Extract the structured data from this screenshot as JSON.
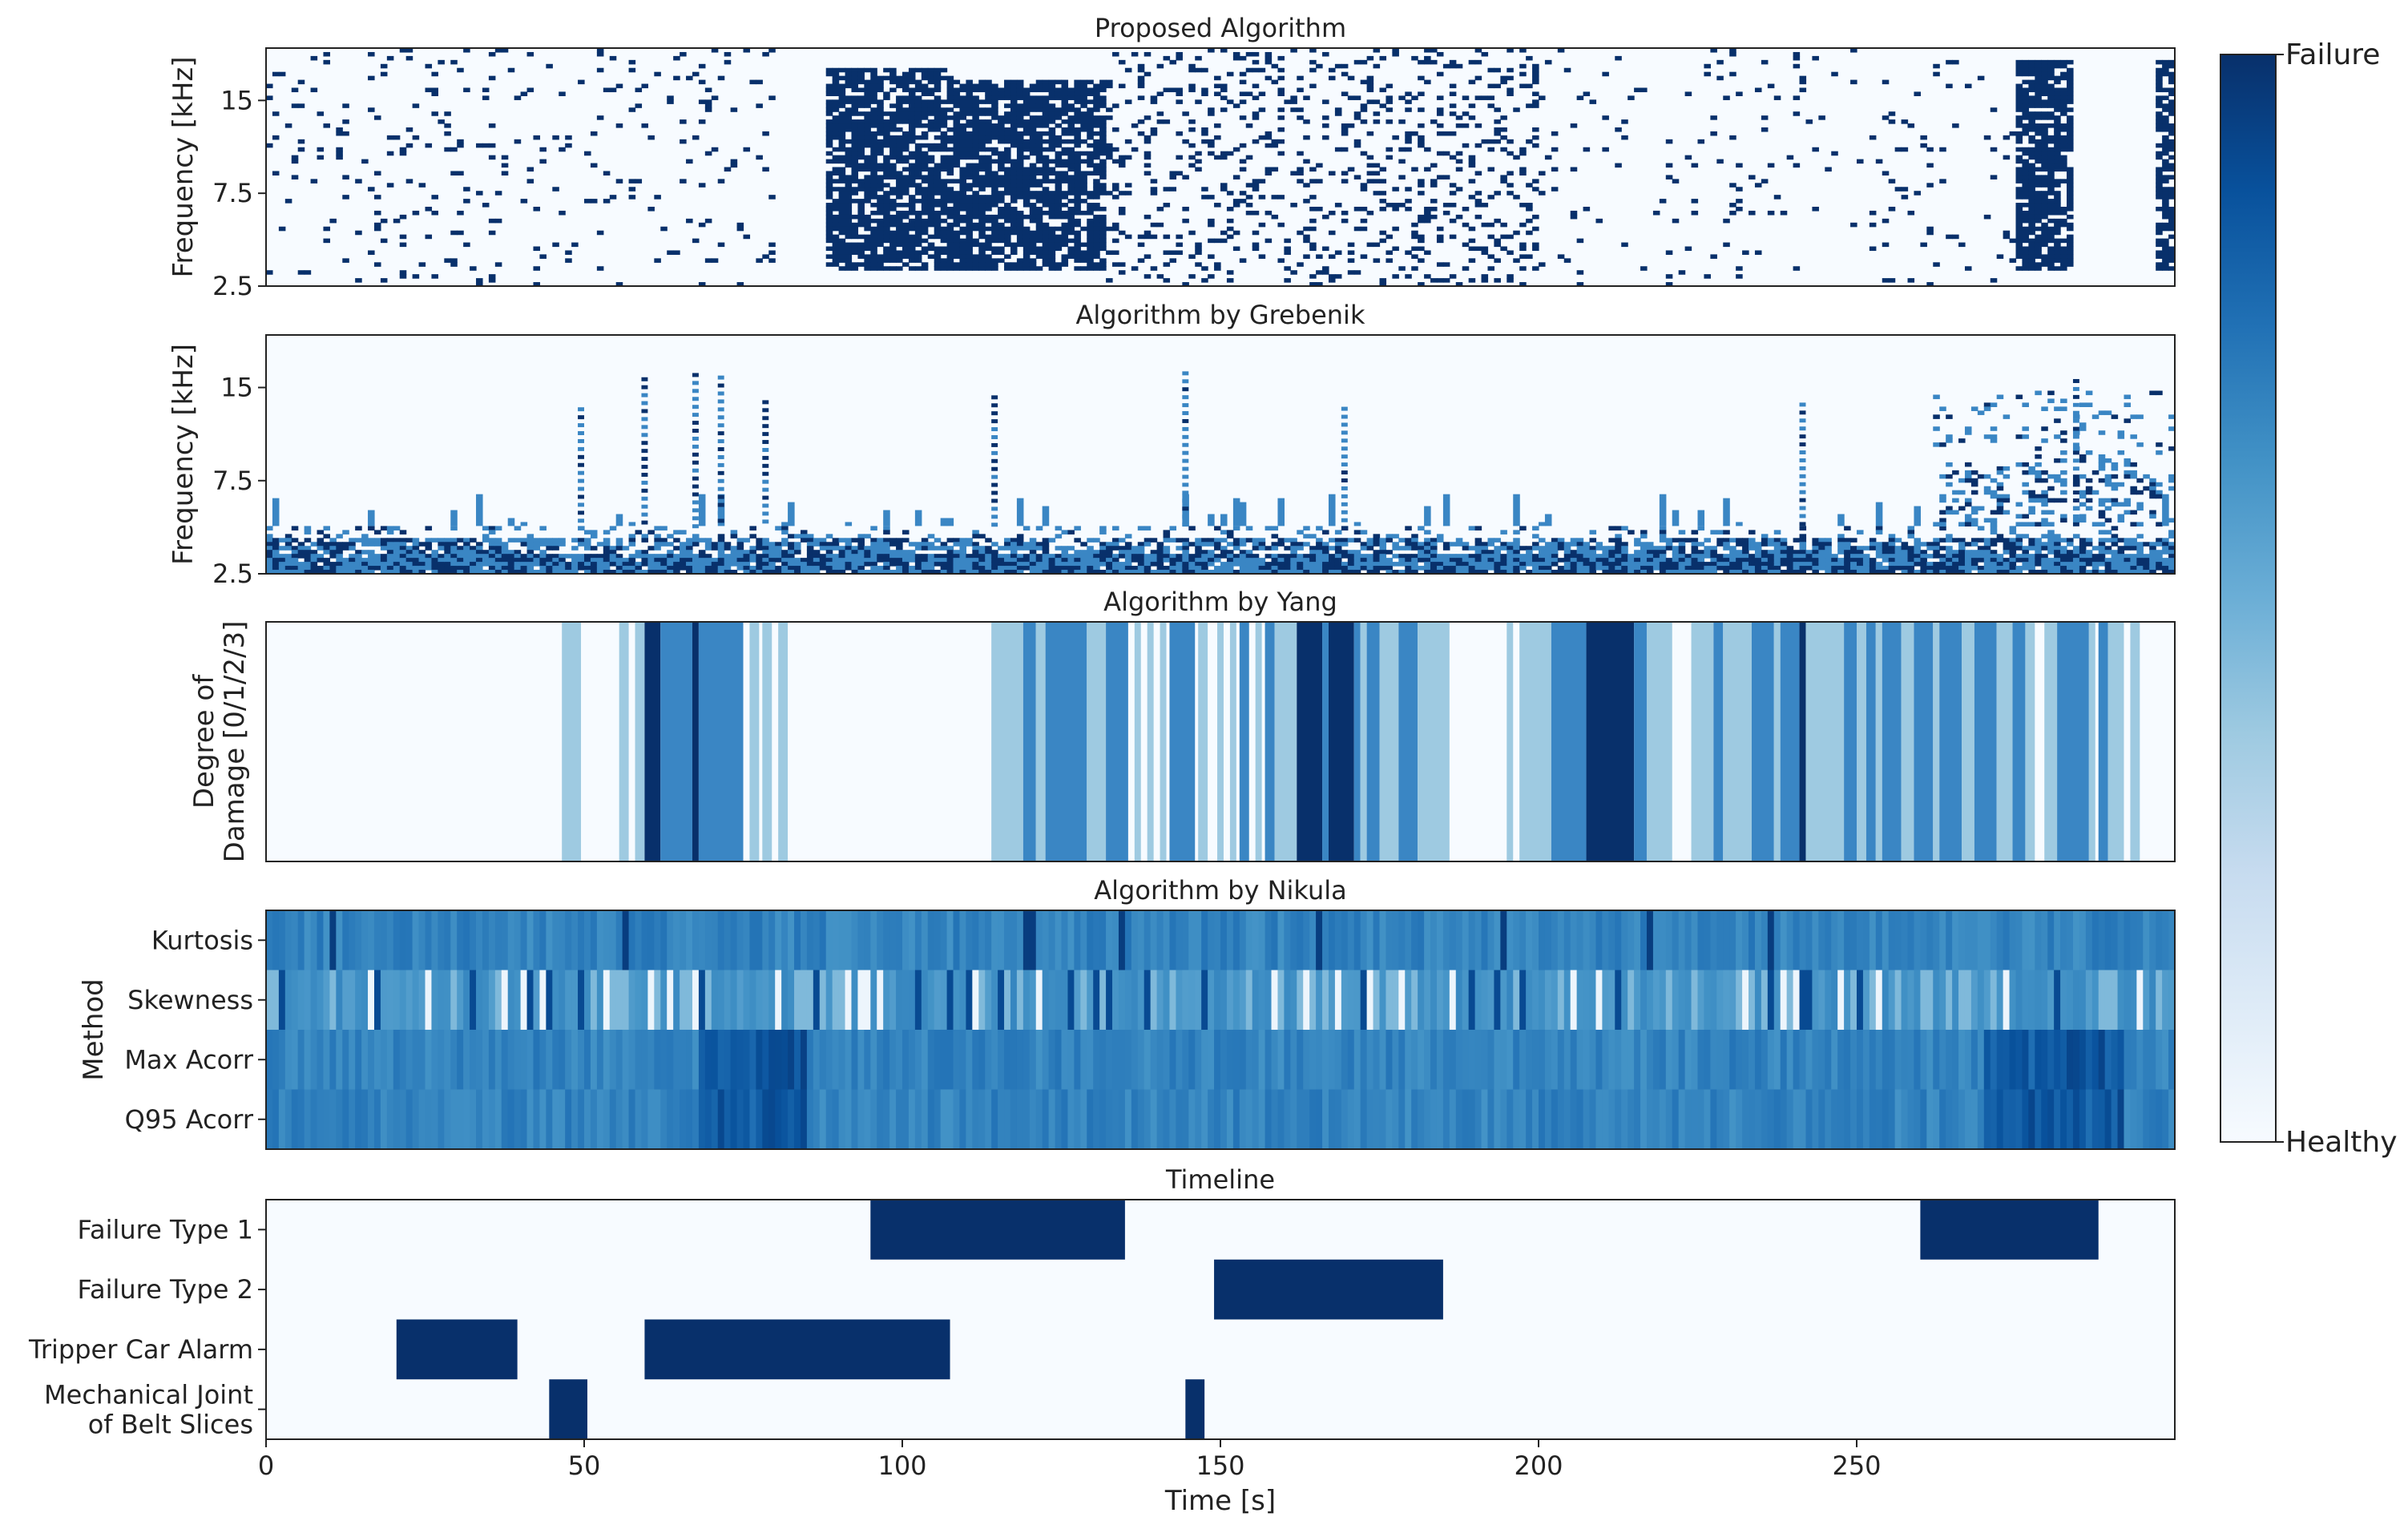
{
  "colorbar": {
    "top_label": "Failure",
    "bottom_label": "Healthy",
    "colors": [
      "#f7fbff",
      "#deebf7",
      "#c6dbef",
      "#9ecae1",
      "#6baed6",
      "#4292c6",
      "#2171b5",
      "#08519c",
      "#08306b"
    ]
  },
  "x_axis": {
    "label": "Time [s]",
    "range": [
      0,
      300
    ],
    "ticks": [
      0,
      50,
      100,
      150,
      200,
      250
    ]
  },
  "chart_data": [
    {
      "type": "heatmap",
      "title": "Proposed Algorithm",
      "ylabel": "Frequency [kHz]",
      "yticks": [
        "15",
        "7.5",
        "2.5"
      ],
      "dense_regions": [
        {
          "x_start": 88,
          "x_end": 132,
          "intensity": 0.95
        },
        {
          "x_start": 275,
          "x_end": 284,
          "intensity": 1.0
        },
        {
          "x_start": 297,
          "x_end": 300,
          "intensity": 0.85
        }
      ],
      "sparse_regions": [
        {
          "x_start": 0,
          "x_end": 80,
          "density": 0.06
        },
        {
          "x_start": 132,
          "x_end": 200,
          "density": 0.18
        },
        {
          "x_start": 200,
          "x_end": 275,
          "density": 0.04
        }
      ]
    },
    {
      "type": "heatmap",
      "title": "Algorithm by Grebenik",
      "ylabel": "Frequency [kHz]",
      "yticks": [
        "15",
        "7.5",
        "2.5"
      ],
      "base_band": {
        "freq_from": 2.5,
        "freq_to": 4.0,
        "intensity": 0.8
      },
      "vertical_streaks": [
        49,
        59,
        67,
        71,
        78,
        114,
        144,
        169,
        241,
        284
      ]
    },
    {
      "type": "heatmap",
      "title": "Algorithm by Yang",
      "ylabel_lines": [
        "Degree of",
        "Damage [0/1/2/3]"
      ],
      "segments": [
        {
          "x_start": 46.5,
          "x_end": 49.5,
          "level": 1
        },
        {
          "x_start": 55.5,
          "x_end": 57,
          "level": 1
        },
        {
          "x_start": 58,
          "x_end": 59.5,
          "level": 1
        },
        {
          "x_start": 59.5,
          "x_end": 62,
          "level": 3
        },
        {
          "x_start": 62,
          "x_end": 67,
          "level": 2
        },
        {
          "x_start": 67,
          "x_end": 68,
          "level": 3
        },
        {
          "x_start": 68,
          "x_end": 75,
          "level": 2
        },
        {
          "x_start": 76,
          "x_end": 77.5,
          "level": 1
        },
        {
          "x_start": 78,
          "x_end": 79.5,
          "level": 1
        },
        {
          "x_start": 80.5,
          "x_end": 82,
          "level": 1
        },
        {
          "x_start": 114,
          "x_end": 119,
          "level": 1
        },
        {
          "x_start": 119,
          "x_end": 121,
          "level": 2
        },
        {
          "x_start": 121,
          "x_end": 122.5,
          "level": 1
        },
        {
          "x_start": 122.5,
          "x_end": 129,
          "level": 2
        },
        {
          "x_start": 129,
          "x_end": 132,
          "level": 1
        },
        {
          "x_start": 132,
          "x_end": 135.5,
          "level": 2
        },
        {
          "x_start": 136.5,
          "x_end": 137.5,
          "level": 1
        },
        {
          "x_start": 138.5,
          "x_end": 139.5,
          "level": 1
        },
        {
          "x_start": 140.5,
          "x_end": 141.5,
          "level": 1
        },
        {
          "x_start": 142,
          "x_end": 146,
          "level": 2
        },
        {
          "x_start": 146.5,
          "x_end": 148,
          "level": 1
        },
        {
          "x_start": 149.5,
          "x_end": 150.5,
          "level": 1
        },
        {
          "x_start": 151.5,
          "x_end": 152.5,
          "level": 1
        },
        {
          "x_start": 153,
          "x_end": 154.5,
          "level": 2
        },
        {
          "x_start": 155.5,
          "x_end": 156.5,
          "level": 1
        },
        {
          "x_start": 157,
          "x_end": 158.5,
          "level": 2
        },
        {
          "x_start": 158.5,
          "x_end": 162,
          "level": 1
        },
        {
          "x_start": 162,
          "x_end": 166,
          "level": 3
        },
        {
          "x_start": 166,
          "x_end": 167,
          "level": 2
        },
        {
          "x_start": 167,
          "x_end": 171,
          "level": 3
        },
        {
          "x_start": 171,
          "x_end": 172,
          "level": 2
        },
        {
          "x_start": 172,
          "x_end": 173,
          "level": 1
        },
        {
          "x_start": 173,
          "x_end": 175,
          "level": 2
        },
        {
          "x_start": 175,
          "x_end": 178,
          "level": 1
        },
        {
          "x_start": 178,
          "x_end": 181,
          "level": 2
        },
        {
          "x_start": 181,
          "x_end": 186,
          "level": 1
        },
        {
          "x_start": 195,
          "x_end": 196,
          "level": 1
        },
        {
          "x_start": 197,
          "x_end": 202,
          "level": 1
        },
        {
          "x_start": 202,
          "x_end": 207.5,
          "level": 2
        },
        {
          "x_start": 207.5,
          "x_end": 215,
          "level": 3
        },
        {
          "x_start": 215,
          "x_end": 217,
          "level": 2
        },
        {
          "x_start": 217,
          "x_end": 221,
          "level": 1
        },
        {
          "x_start": 224,
          "x_end": 227.5,
          "level": 1
        },
        {
          "x_start": 227.5,
          "x_end": 229,
          "level": 2
        },
        {
          "x_start": 229,
          "x_end": 233.5,
          "level": 1
        },
        {
          "x_start": 233.5,
          "x_end": 237,
          "level": 2
        },
        {
          "x_start": 237,
          "x_end": 238,
          "level": 1
        },
        {
          "x_start": 238,
          "x_end": 241,
          "level": 2
        },
        {
          "x_start": 241,
          "x_end": 242,
          "level": 3
        },
        {
          "x_start": 242,
          "x_end": 248,
          "level": 1
        },
        {
          "x_start": 248,
          "x_end": 250,
          "level": 2
        },
        {
          "x_start": 250,
          "x_end": 251.5,
          "level": 1
        },
        {
          "x_start": 251.5,
          "x_end": 253,
          "level": 2
        },
        {
          "x_start": 253,
          "x_end": 254,
          "level": 1
        },
        {
          "x_start": 254,
          "x_end": 257,
          "level": 2
        },
        {
          "x_start": 257,
          "x_end": 259,
          "level": 1
        },
        {
          "x_start": 259,
          "x_end": 262,
          "level": 2
        },
        {
          "x_start": 262,
          "x_end": 263,
          "level": 1
        },
        {
          "x_start": 263,
          "x_end": 266.5,
          "level": 2
        },
        {
          "x_start": 266.5,
          "x_end": 268.5,
          "level": 1
        },
        {
          "x_start": 268.5,
          "x_end": 272,
          "level": 2
        },
        {
          "x_start": 272,
          "x_end": 274.5,
          "level": 1
        },
        {
          "x_start": 274.5,
          "x_end": 276.5,
          "level": 2
        },
        {
          "x_start": 276.5,
          "x_end": 278,
          "level": 1
        },
        {
          "x_start": 279.5,
          "x_end": 281.5,
          "level": 1
        },
        {
          "x_start": 281.5,
          "x_end": 286.5,
          "level": 2
        },
        {
          "x_start": 286.5,
          "x_end": 287.5,
          "level": 1
        },
        {
          "x_start": 288,
          "x_end": 289.5,
          "level": 2
        },
        {
          "x_start": 289.5,
          "x_end": 292,
          "level": 1
        },
        {
          "x_start": 292,
          "x_end": 293,
          "level": 0
        },
        {
          "x_start": 293,
          "x_end": 294.5,
          "level": 1
        }
      ]
    },
    {
      "type": "heatmap",
      "title": "Algorithm by Nikula",
      "ylabel": "Method",
      "rows": [
        "Kurtosis",
        "Skewness",
        "Max Acorr",
        "Q95 Acorr"
      ],
      "base_intensity": 0.68
    },
    {
      "type": "table",
      "title": "Timeline",
      "rows": [
        {
          "label_lines": [
            "Failure Type 1"
          ],
          "intervals": [
            [
              95,
              135
            ],
            [
              260,
              288
            ]
          ]
        },
        {
          "label_lines": [
            "Failure Type 2"
          ],
          "intervals": [
            [
              149,
              185
            ]
          ]
        },
        {
          "label_lines": [
            "Tripper Car Alarm"
          ],
          "intervals": [
            [
              20.5,
              39.5
            ],
            [
              59.5,
              107.5
            ]
          ]
        },
        {
          "label_lines": [
            "Mechanical Joint",
            "of Belt Slices"
          ],
          "intervals": [
            [
              44.5,
              50.5
            ],
            [
              144.5,
              147.5
            ]
          ]
        }
      ]
    }
  ]
}
